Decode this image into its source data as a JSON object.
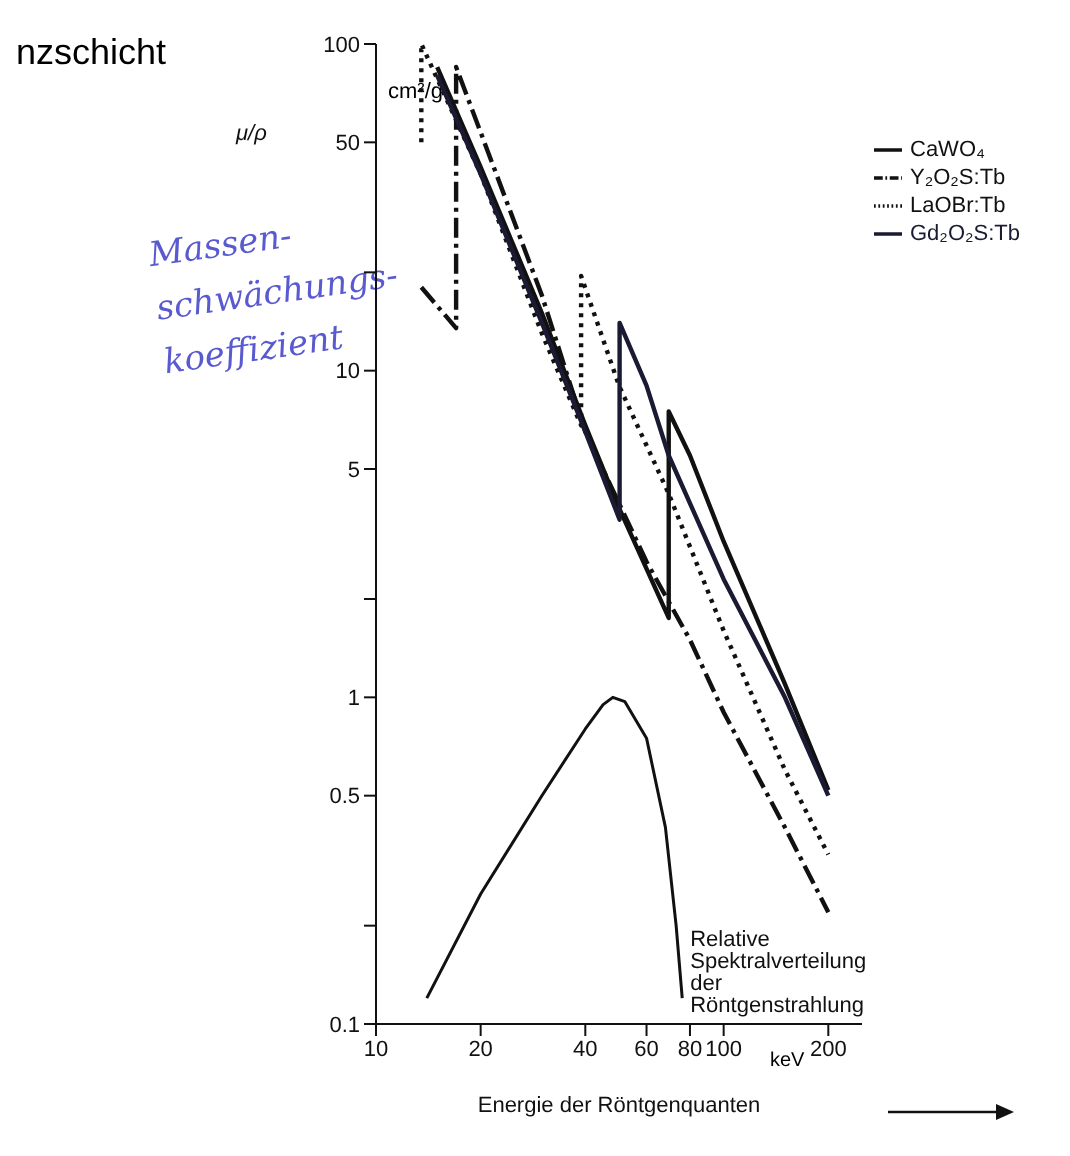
{
  "chart_data": {
    "type": "line",
    "title": "nzschicht",
    "xlabel": "Energie der Röntgenquanten",
    "ylabel": "μ/ρ",
    "annotations": [
      "cm²/g",
      "keV",
      "Massen-schwächungs-koeffizient",
      {
        "text": "Relative Spektralverteilung der Röntgenstrahlung",
        "x": 76,
        "y": 0.12
      }
    ],
    "log": "xy",
    "legend": "top right",
    "marker": "none",
    "xlim": [
      10,
      250
    ],
    "xticks": [
      10,
      20,
      40,
      60,
      80,
      100,
      200
    ],
    "ylim": [
      0.1,
      100
    ],
    "yticks": [
      0.1,
      {
        "value": 0.2,
        "label": null
      },
      0.5,
      1,
      {
        "value": 2,
        "label": null
      },
      5,
      10,
      {
        "value": 20,
        "label": null
      },
      50,
      100
    ],
    "series": [
      {
        "name": "CaWO₄",
        "color": "#111111",
        "line_style": "solid",
        "x": [
          15,
          20,
          30,
          40,
          50,
          69.5,
          69.5,
          80,
          100,
          150,
          200
        ],
        "values": [
          85,
          42,
          15,
          6.8,
          3.8,
          1.75,
          7.5,
          5.5,
          3.0,
          1.1,
          0.52
        ]
      },
      {
        "name": "Y₂O₂S:Tb",
        "color": "#111111",
        "line_style": "dashed",
        "x": [
          13.5,
          17,
          17,
          30,
          40,
          60,
          80,
          100,
          150,
          200
        ],
        "values": [
          18,
          13.5,
          85,
          17,
          6.5,
          2.6,
          1.5,
          0.9,
          0.4,
          0.22
        ]
      },
      {
        "name": "LaOBr:Tb",
        "color": "#111111",
        "line_style": "dotted",
        "x": [
          13.5,
          13.5,
          20,
          30,
          38.9,
          38.9,
          50,
          69.5,
          100,
          150,
          200
        ],
        "values": [
          50,
          100,
          40,
          13,
          6.8,
          19.5,
          9,
          4.2,
          1.6,
          0.6,
          0.33
        ]
      },
      {
        "name": "Gd₂O₂S:Tb",
        "color": "#1a1a33",
        "line_style": "solid",
        "x": [
          15,
          20,
          30,
          40,
          50.2,
          50.2,
          60,
          69.5,
          100,
          150,
          200
        ],
        "values": [
          80,
          40,
          14,
          6.5,
          3.5,
          14,
          9,
          5.5,
          2.3,
          1.0,
          0.5
        ]
      },
      {
        "color": "#111111",
        "line_style": "solid",
        "x": [
          14,
          20,
          30,
          40,
          45,
          48,
          52,
          60,
          68,
          73,
          76
        ],
        "values": [
          0.12,
          0.25,
          0.5,
          0.8,
          0.95,
          1.0,
          0.97,
          0.75,
          0.4,
          0.2,
          0.12
        ]
      }
    ]
  }
}
